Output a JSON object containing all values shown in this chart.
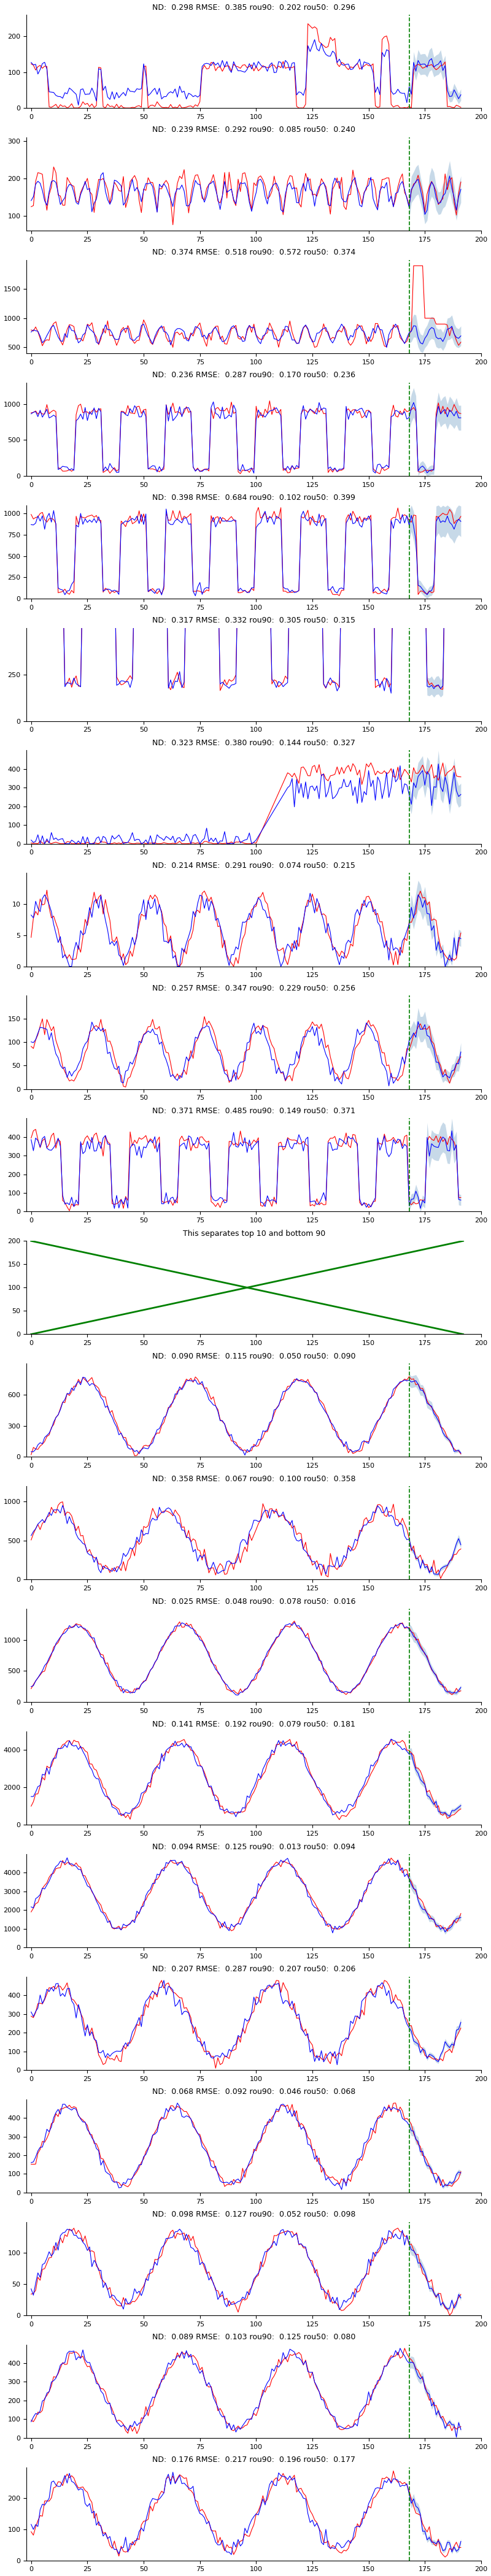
{
  "plots_top": [
    {
      "nd": 0.298,
      "rmse": 0.385,
      "rou90": 0.202,
      "rou50": 0.296,
      "ymax": 260,
      "ylim": [
        0,
        260
      ],
      "yticks": [
        0,
        100,
        200
      ],
      "vline": 168
    },
    {
      "nd": 0.239,
      "rmse": 0.292,
      "rou90": 0.085,
      "rou50": 0.24,
      "ymax": 310,
      "ylim": [
        60,
        310
      ],
      "yticks": [
        100,
        200,
        300
      ],
      "vline": 168
    },
    {
      "nd": 0.374,
      "rmse": 0.518,
      "rou90": 0.572,
      "rou50": 0.374,
      "ymax": 2000,
      "ylim": [
        400,
        2000
      ],
      "yticks": [
        500,
        1000,
        1500
      ],
      "vline": 168
    },
    {
      "nd": 0.236,
      "rmse": 0.287,
      "rou90": 0.17,
      "rou50": 0.236,
      "ymax": 1300,
      "ylim": [
        0,
        1300
      ],
      "yticks": [
        0,
        500,
        1000
      ],
      "vline": 168
    },
    {
      "nd": 0.398,
      "rmse": 0.684,
      "rou90": 0.102,
      "rou50": 0.399,
      "ymax": 1100,
      "ylim": [
        0,
        1100
      ],
      "yticks": [
        0,
        250,
        500,
        750,
        1000
      ],
      "vline": 168
    },
    {
      "nd": 0.317,
      "rmse": 0.332,
      "rou90": 0.305,
      "rou50": 0.315,
      "ymax": 500,
      "ylim": [
        0,
        500
      ],
      "yticks": [
        0,
        250
      ],
      "vline": 168
    },
    {
      "nd": 0.323,
      "rmse": 0.38,
      "rou90": 0.144,
      "rou50": 0.327,
      "ymax": 500,
      "ylim": [
        0,
        500
      ],
      "yticks": [
        0,
        100,
        200,
        300,
        400
      ],
      "vline": 168
    },
    {
      "nd": 0.214,
      "rmse": 0.291,
      "rou90": 0.074,
      "rou50": 0.215,
      "ymax": 15,
      "ylim": [
        0,
        15
      ],
      "yticks": [
        0,
        5,
        10
      ],
      "vline": 168
    },
    {
      "nd": 0.257,
      "rmse": 0.347,
      "rou90": 0.229,
      "rou50": 0.256,
      "ymax": 200,
      "ylim": [
        0,
        200
      ],
      "yticks": [
        0,
        50,
        100,
        150
      ],
      "vline": 168
    },
    {
      "nd": 0.371,
      "rmse": 0.485,
      "rou90": 0.149,
      "rou50": 0.371,
      "ymax": 500,
      "ylim": [
        0,
        500
      ],
      "yticks": [
        0,
        100,
        200,
        300,
        400
      ],
      "vline": 168
    }
  ],
  "plots_bottom": [
    {
      "nd": 0.09,
      "rmse": 0.115,
      "rou90": 0.05,
      "rou50": 0.09,
      "ymax": 900,
      "ylim": [
        0,
        900
      ],
      "yticks": [
        0,
        300,
        600
      ],
      "vline": 168
    },
    {
      "nd": 0.358,
      "rmse": 0.067,
      "rou90": 0.1,
      "rou50": 0.358,
      "ymax": 1200,
      "ylim": [
        0,
        1200
      ],
      "yticks": [
        0,
        500,
        1000
      ],
      "vline": 168
    },
    {
      "nd": 0.025,
      "rmse": 0.048,
      "rou90": 0.078,
      "rou50": 0.016,
      "ymax": 1500,
      "ylim": [
        0,
        1500
      ],
      "yticks": [
        0,
        500,
        1000
      ],
      "vline": 168
    },
    {
      "nd": 0.141,
      "rmse": 0.192,
      "rou90": 0.079,
      "rou50": 0.181,
      "ymax": 5000,
      "ylim": [
        0,
        5000
      ],
      "yticks": [
        0,
        2000,
        4000
      ],
      "vline": 168
    },
    {
      "nd": 0.094,
      "rmse": 0.125,
      "rou90": 0.013,
      "rou50": 0.094,
      "ymax": 5000,
      "ylim": [
        0,
        5000
      ],
      "yticks": [
        0,
        1000,
        2000,
        3000,
        4000
      ],
      "vline": 168
    },
    {
      "nd": 0.207,
      "rmse": 0.287,
      "rou90": 0.207,
      "rou50": 0.206,
      "ymax": 500,
      "ylim": [
        0,
        500
      ],
      "yticks": [
        0,
        100,
        200,
        300,
        400
      ],
      "vline": 168
    },
    {
      "nd": 0.068,
      "rmse": 0.092,
      "rou90": 0.046,
      "rou50": 0.068,
      "ymax": 500,
      "ylim": [
        0,
        500
      ],
      "yticks": [
        0,
        100,
        200,
        300,
        400
      ],
      "vline": 168
    },
    {
      "nd": 0.098,
      "rmse": 0.127,
      "rou90": 0.052,
      "rou50": 0.098,
      "ymax": 150,
      "ylim": [
        0,
        150
      ],
      "yticks": [
        0,
        50,
        100
      ],
      "vline": 168
    },
    {
      "nd": 0.089,
      "rmse": 0.103,
      "rou90": 0.125,
      "rou50": 0.08,
      "ymax": 500,
      "ylim": [
        0,
        500
      ],
      "yticks": [
        0,
        100,
        200,
        300,
        400
      ],
      "vline": 168
    },
    {
      "nd": 0.176,
      "rmse": 0.217,
      "rou90": 0.196,
      "rou50": 0.177,
      "ymax": 300,
      "ylim": [
        0,
        300
      ],
      "yticks": [
        0,
        100,
        200
      ],
      "vline": 168
    }
  ],
  "separator_text": "This separates top 10 and bottom 90",
  "n_points": 192,
  "vline_pos": 168,
  "xmax": 200
}
